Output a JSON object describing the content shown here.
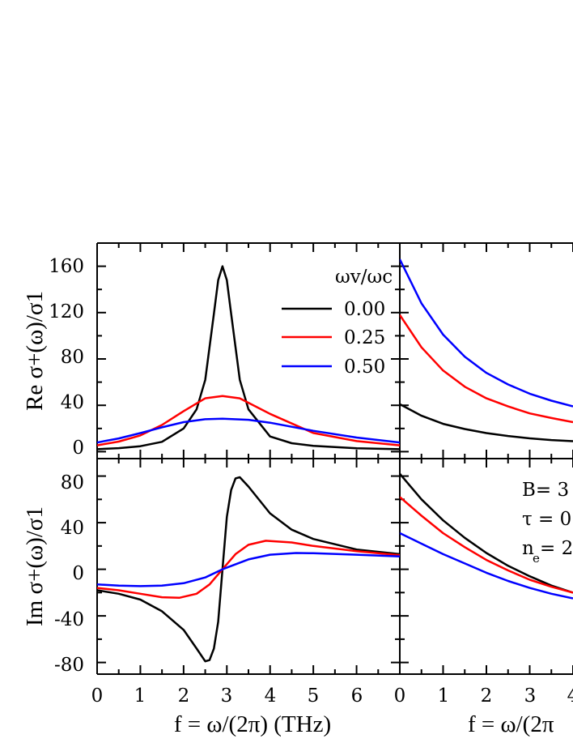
{
  "chart_data": [
    {
      "panel": "top-left",
      "type": "line",
      "xlim": [
        0,
        7
      ],
      "ylim": [
        -6,
        180
      ],
      "ylabel": "Re σ+(ω)/σ1",
      "yticks": [
        "0",
        "40",
        "80",
        "120",
        "160"
      ],
      "legend": {
        "title": "ωv/ωc",
        "position": "top-right",
        "entries": [
          {
            "label": "0.00",
            "color": "#000000"
          },
          {
            "label": "0.25",
            "color": "#ff0000"
          },
          {
            "label": "0.50",
            "color": "#0000ff"
          }
        ]
      },
      "series": [
        {
          "color": "#000000",
          "x": [
            0,
            0.5,
            1,
            1.5,
            2,
            2.3,
            2.5,
            2.7,
            2.8,
            2.9,
            3.0,
            3.1,
            3.3,
            3.5,
            4,
            4.5,
            5,
            6,
            7
          ],
          "y": [
            2.1,
            3.0,
            4.7,
            8.5,
            20,
            36.5,
            62,
            119,
            148,
            160,
            148,
            119,
            62,
            36.5,
            13.1,
            7.3,
            5.0,
            2.9,
            2.1
          ]
        },
        {
          "color": "#ff0000",
          "x": [
            0,
            0.5,
            1,
            1.5,
            2,
            2.5,
            2.9,
            3.3,
            4,
            5,
            6,
            7
          ],
          "y": [
            5.5,
            8.7,
            14.0,
            23,
            35,
            46,
            48,
            46,
            32.6,
            16.1,
            9.1,
            5.5
          ]
        },
        {
          "color": "#0000ff",
          "x": [
            0,
            0.5,
            1,
            1.5,
            2,
            2.5,
            2.9,
            3.5,
            4,
            5,
            6,
            7
          ],
          "y": [
            7.9,
            11.4,
            16.0,
            21,
            25.5,
            28,
            28.5,
            27.5,
            25,
            18,
            12.2,
            7.9
          ]
        }
      ]
    },
    {
      "panel": "bottom-left",
      "type": "line",
      "xlim": [
        0,
        7
      ],
      "ylim": [
        -90,
        95
      ],
      "xlabel": "f = ω/(2π) (THz)",
      "ylabel": "Im σ+(ω)/σ1",
      "xticks": [
        "0",
        "1",
        "2",
        "3",
        "4",
        "5",
        "6"
      ],
      "yticks": [
        "-80",
        "-40",
        "0",
        "40",
        "80"
      ],
      "series": [
        {
          "color": "#000000",
          "x": [
            0,
            0.5,
            1,
            1.5,
            2,
            2.3,
            2.5,
            2.6,
            2.7,
            2.8,
            2.9,
            3.0,
            3.1,
            3.2,
            3.3,
            3.5,
            4,
            4.5,
            5,
            6,
            7
          ],
          "y": [
            -18,
            -21,
            -26,
            -36,
            -52,
            -68,
            -79,
            -78,
            -68,
            -45,
            0,
            45,
            68,
            78,
            79,
            71,
            48,
            34,
            26,
            17,
            13
          ]
        },
        {
          "color": "#ff0000",
          "x": [
            0,
            0.5,
            1,
            1.5,
            1.9,
            2.3,
            2.6,
            2.9,
            3.2,
            3.5,
            3.9,
            4.5,
            5,
            6,
            7
          ],
          "y": [
            -16,
            -18,
            -21,
            -24,
            -24.5,
            -21,
            -13,
            0,
            13,
            21,
            24.5,
            23,
            20,
            15.5,
            12
          ]
        },
        {
          "color": "#0000ff",
          "x": [
            0,
            0.5,
            1,
            1.5,
            2,
            2.5,
            2.9,
            3.5,
            4,
            4.6,
            5,
            6,
            7
          ],
          "y": [
            -13,
            -14,
            -14.5,
            -14,
            -12,
            -7,
            0,
            8.5,
            12.5,
            14,
            13.8,
            12.5,
            11
          ]
        }
      ]
    },
    {
      "panel": "top-right",
      "type": "line",
      "xlim": [
        0,
        4
      ],
      "ylim": [
        -6,
        180
      ],
      "series": [
        {
          "color": "#000000",
          "x": [
            0,
            0.5,
            1,
            1.5,
            2,
            2.5,
            3,
            3.5,
            4
          ],
          "y": [
            41,
            31,
            24,
            19.5,
            16,
            13.5,
            11.5,
            10,
            9
          ]
        },
        {
          "color": "#ff0000",
          "x": [
            0,
            0.5,
            1,
            1.5,
            2,
            2.5,
            3,
            3.5,
            4
          ],
          "y": [
            118,
            90,
            70,
            56,
            46,
            39,
            33,
            29,
            25.5
          ]
        },
        {
          "color": "#0000ff",
          "x": [
            0,
            0.5,
            1,
            1.5,
            2,
            2.5,
            3,
            3.5,
            4
          ],
          "y": [
            166,
            128,
            101,
            82,
            68,
            58,
            50,
            44,
            39
          ]
        }
      ]
    },
    {
      "panel": "bottom-right",
      "type": "line",
      "xlim": [
        0,
        4
      ],
      "ylim": [
        -90,
        95
      ],
      "xlabel": "f = ω/(2π",
      "xticks": [
        "0",
        "1",
        "2",
        "3",
        "4"
      ],
      "annotations": [
        "B= 3",
        "τ = 0",
        "n",
        "e",
        "= 2"
      ],
      "series": [
        {
          "color": "#000000",
          "x": [
            0,
            0.5,
            1,
            1.5,
            2,
            2.5,
            3,
            3.5,
            4
          ],
          "y": [
            82,
            60,
            42,
            27,
            14,
            3,
            -6,
            -14,
            -20
          ]
        },
        {
          "color": "#ff0000",
          "x": [
            0,
            0.5,
            1,
            1.5,
            2,
            2.5,
            3,
            3.5,
            4
          ],
          "y": [
            62,
            46,
            31,
            19,
            8,
            -1,
            -9,
            -15,
            -20
          ]
        },
        {
          "color": "#0000ff",
          "x": [
            0,
            0.5,
            1,
            1.5,
            2,
            2.5,
            3,
            3.5,
            4
          ],
          "y": [
            31,
            22,
            13,
            5,
            -3,
            -10,
            -16,
            -21,
            -25
          ]
        }
      ]
    }
  ]
}
